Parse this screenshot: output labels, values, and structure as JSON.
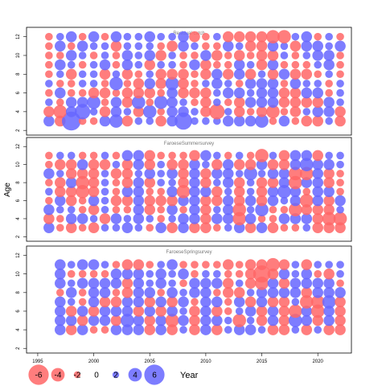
{
  "chart_data": {
    "type": "scatter",
    "subtype": "bubble-residuals",
    "ylabel": "Age",
    "xlabel": "Year",
    "x_ticks": [
      "1995",
      "2000",
      "2005",
      "2010",
      "2015",
      "2020"
    ],
    "y_ticks": [
      "2",
      "4",
      "6",
      "8",
      "10",
      "12"
    ],
    "xlim": [
      1994,
      2023
    ],
    "ylim": [
      1.5,
      13
    ],
    "colors": {
      "positive": "#6666ff",
      "negative": "#ff6666"
    },
    "legend": {
      "values": [
        -6,
        -4,
        -2,
        0,
        2,
        4,
        6
      ],
      "labels": [
        "-6",
        "-4",
        "-2",
        "0",
        "2",
        "4",
        "6"
      ],
      "placement": "bottom-left"
    },
    "panels": [
      {
        "title": "Residual catch",
        "years": [
          1996,
          1997,
          1998,
          1999,
          2000,
          2001,
          2002,
          2003,
          2004,
          2005,
          2006,
          2007,
          2008,
          2009,
          2010,
          2011,
          2012,
          2013,
          2014,
          2015,
          2016,
          2017,
          2018,
          2019,
          2020,
          2021,
          2022
        ],
        "ages": [
          3,
          4,
          5,
          6,
          7,
          8,
          9,
          10,
          11,
          12
        ],
        "residuals": [
          [
            2,
            -2,
            6,
            -1,
            -1,
            2,
            3,
            -2,
            1,
            1,
            -2,
            2,
            5,
            1,
            1,
            1,
            2,
            2,
            2,
            3,
            -1,
            2,
            -1,
            -2,
            -2,
            1,
            -2
          ],
          [
            -2,
            -3,
            2,
            4,
            1,
            -2,
            2,
            1,
            -2,
            3,
            -1,
            2,
            2,
            1,
            -2,
            -4,
            1,
            -2,
            -1,
            -2,
            -3,
            -1,
            -2,
            1,
            2,
            2,
            -2
          ],
          [
            1,
            -1,
            2,
            2,
            3,
            -1,
            2,
            -2,
            3,
            -1,
            3,
            2,
            1,
            -1,
            -2,
            1,
            -1,
            -2,
            2,
            2,
            2,
            -2,
            -2,
            -2,
            -2,
            2,
            1
          ],
          [
            -1,
            2,
            -1,
            -1,
            -2,
            -2,
            -1,
            -2,
            -2,
            -2,
            -1,
            2,
            -2,
            -2,
            -2,
            1,
            2,
            2,
            1,
            2,
            2,
            -2,
            -2,
            2,
            2,
            -1,
            1
          ],
          [
            1,
            -1,
            -1,
            1,
            1,
            -1,
            3,
            -1,
            -2,
            2,
            -2,
            3,
            -2,
            -1,
            1,
            2,
            1,
            -1,
            2,
            2,
            2,
            -1,
            2,
            1,
            1,
            -1,
            1
          ],
          [
            -1,
            1,
            -2,
            1,
            1,
            -2,
            1,
            -2,
            -1,
            1,
            -2,
            -2,
            -2,
            -1,
            -2,
            2,
            -2,
            2,
            -2,
            1,
            -2,
            2,
            -2,
            -2,
            -1,
            1,
            -1
          ],
          [
            -1,
            2,
            1,
            -1,
            1,
            2,
            -1,
            2,
            1,
            -2,
            1,
            1,
            -1,
            2,
            -2,
            -1,
            -1,
            2,
            1,
            -2,
            2,
            -1,
            -1,
            -1,
            1,
            2,
            -1
          ],
          [
            -1,
            -1,
            2,
            1,
            -1,
            1,
            -1,
            2,
            1,
            2,
            -2,
            1,
            -1,
            -1,
            2,
            -2,
            -1,
            -2,
            -1,
            -2,
            -2,
            1,
            -1,
            1,
            2,
            2,
            -1
          ],
          [
            -1,
            2,
            -1,
            2,
            1,
            1,
            -2,
            1,
            1,
            1,
            -1,
            -2,
            2,
            1,
            -1,
            -1,
            2,
            1,
            -2,
            -2,
            2,
            1,
            -2,
            2,
            2,
            1,
            2
          ],
          [
            -1,
            1,
            2,
            -1,
            2,
            -1,
            2,
            1,
            1,
            2,
            1,
            1,
            2,
            -2,
            -1,
            1,
            -2,
            -2,
            -2,
            -2,
            -3,
            -3,
            1,
            2,
            -1,
            1,
            -1
          ]
        ]
      },
      {
        "title": "FaroeseSummersurvey",
        "years": [
          1996,
          1997,
          1998,
          1999,
          2000,
          2001,
          2002,
          2003,
          2004,
          2005,
          2006,
          2007,
          2008,
          2009,
          2010,
          2011,
          2012,
          2013,
          2014,
          2015,
          2016,
          2017,
          2018,
          2019,
          2020,
          2021,
          2022
        ],
        "ages": [
          3,
          4,
          5,
          6,
          7,
          8,
          9,
          10,
          11
        ],
        "residuals": [
          [
            2,
            -1,
            -2,
            -1,
            -2,
            1,
            1,
            2,
            1,
            -1,
            2,
            -2,
            2,
            -2,
            -2,
            -1,
            1,
            2,
            -2,
            2,
            -2,
            -1,
            -1,
            1,
            -2,
            -2,
            -2
          ],
          [
            -2,
            -1,
            2,
            2,
            1,
            -2,
            2,
            1,
            2,
            1,
            -1,
            1,
            2,
            2,
            -2,
            2,
            2,
            -3,
            2,
            -1,
            -1,
            2,
            2,
            2,
            -2,
            -3,
            -3
          ],
          [
            2,
            1,
            1,
            -1,
            -2,
            1,
            -1,
            -1,
            2,
            -2,
            -1,
            2,
            -1,
            2,
            -2,
            1,
            2,
            -3,
            1,
            3,
            -1,
            -1,
            -3,
            -2,
            -2,
            -2,
            1
          ],
          [
            -1,
            2,
            -2,
            -1,
            2,
            1,
            -2,
            -2,
            2,
            -2,
            -2,
            -2,
            2,
            2,
            -2,
            -2,
            2,
            -2,
            2,
            -2,
            2,
            1,
            2,
            -3,
            2,
            -2,
            2
          ],
          [
            1,
            -2,
            -2,
            -3,
            -2,
            1,
            -1,
            2,
            2,
            -1,
            -1,
            2,
            -3,
            2,
            2,
            -2,
            1,
            -2,
            1,
            -2,
            2,
            3,
            2,
            -1,
            2,
            2,
            -1
          ],
          [
            -1,
            -2,
            2,
            -3,
            -2,
            1,
            -1,
            -2,
            2,
            -2,
            1,
            1,
            -2,
            2,
            -2,
            1,
            2,
            -2,
            1,
            -2,
            -2,
            2,
            -3,
            2,
            2,
            -2,
            -1
          ],
          [
            2,
            1,
            -2,
            -2,
            -2,
            1,
            -2,
            -2,
            1,
            2,
            1,
            2,
            -2,
            2,
            -2,
            2,
            2,
            1,
            3,
            1,
            2,
            2,
            -3,
            -3,
            2,
            -2,
            -1
          ],
          [
            -1,
            -2,
            -2,
            2,
            -2,
            -2,
            1,
            -2,
            2,
            -2,
            1,
            -2,
            -2,
            2,
            1,
            -2,
            2,
            -2,
            -2,
            2,
            -2,
            -2,
            2,
            3,
            2,
            2,
            1
          ],
          [
            -1,
            1,
            1,
            -1,
            -1,
            1,
            -1,
            2,
            2,
            -2,
            -1,
            -1,
            -1,
            -2,
            2,
            1,
            -1,
            1,
            -1,
            -3,
            1,
            -2,
            2,
            2,
            -2,
            1,
            1
          ]
        ]
      },
      {
        "title": "FaroeseSpringsurvey",
        "years": [
          1997,
          1998,
          1999,
          2000,
          2001,
          2002,
          2003,
          2004,
          2005,
          2006,
          2007,
          2008,
          2009,
          2010,
          2011,
          2012,
          2013,
          2014,
          2015,
          2016,
          2017,
          2018,
          2019,
          2020,
          2021,
          2022
        ],
        "ages": [
          4,
          5,
          6,
          7,
          8,
          9,
          10,
          11
        ],
        "residuals": [
          [
            2,
            -2,
            2,
            -1,
            -1,
            2,
            2,
            2,
            -2,
            2,
            -2,
            1,
            -2,
            2,
            -2,
            1,
            2,
            2,
            1,
            -2,
            -2,
            1,
            -2,
            1,
            -2,
            -2
          ],
          [
            2,
            2,
            -2,
            2,
            2,
            -2,
            3,
            2,
            -2,
            2,
            -3,
            2,
            -2,
            2,
            2,
            1,
            -3,
            1,
            -2,
            2,
            -2,
            3,
            2,
            -2,
            2,
            -2
          ],
          [
            2,
            -2,
            2,
            -2,
            2,
            2,
            2,
            -2,
            2,
            -2,
            2,
            1,
            -2,
            2,
            -2,
            -1,
            1,
            2,
            -2,
            2,
            -2,
            -3,
            2,
            -3,
            2,
            -2
          ],
          [
            2,
            1,
            -1,
            2,
            -2,
            -2,
            2,
            2,
            -2,
            2,
            -2,
            2,
            -1,
            2,
            2,
            -1,
            2,
            -2,
            2,
            -2,
            -2,
            1,
            -3,
            -3,
            3,
            -2
          ],
          [
            -1,
            2,
            -1,
            2,
            2,
            -1,
            -2,
            2,
            2,
            -1,
            2,
            1,
            2,
            2,
            -1,
            -2,
            -2,
            1,
            2,
            2,
            2,
            2,
            -2,
            2,
            2,
            2
          ],
          [
            2,
            1,
            2,
            2,
            2,
            2,
            -2,
            2,
            1,
            2,
            1,
            -1,
            2,
            2,
            2,
            -2,
            1,
            -2,
            -3,
            2,
            -2,
            2,
            2,
            2,
            2,
            -1
          ],
          [
            2,
            -1,
            -1,
            -1,
            -1,
            2,
            2,
            2,
            1,
            2,
            1,
            2,
            -1,
            1,
            1,
            -1,
            -1,
            -2,
            -5,
            -2,
            2,
            1,
            2,
            -1,
            -2,
            1
          ],
          [
            2,
            1,
            2,
            2,
            1,
            -1,
            -2,
            -2,
            -1,
            1,
            2,
            -1,
            -1,
            -1,
            -1,
            -2,
            -1,
            -2,
            -2,
            -3,
            -2,
            1,
            -2,
            1,
            1,
            1
          ]
        ]
      }
    ]
  }
}
